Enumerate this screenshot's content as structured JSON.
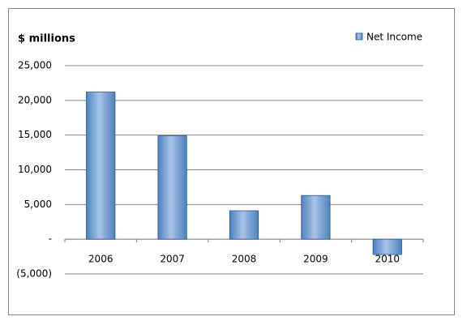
{
  "chart_data": {
    "type": "bar",
    "y_axis_label": "$ millions",
    "categories": [
      "2006",
      "2007",
      "2008",
      "2009",
      "2010"
    ],
    "series": [
      {
        "name": "Net Income",
        "color": "#4f81bd",
        "values": [
          21200,
          14900,
          4100,
          6300,
          -2200
        ]
      }
    ],
    "ylim": [
      -5000,
      25000
    ],
    "yticks": [
      {
        "value": -5000,
        "label": "(5,000)"
      },
      {
        "value": 0,
        "label": "-"
      },
      {
        "value": 5000,
        "label": "5,000"
      },
      {
        "value": 10000,
        "label": "10,000"
      },
      {
        "value": 15000,
        "label": "15,000"
      },
      {
        "value": 20000,
        "label": "20,000"
      },
      {
        "value": 25000,
        "label": "25,000"
      }
    ],
    "grid": true,
    "legend": "top-right"
  }
}
